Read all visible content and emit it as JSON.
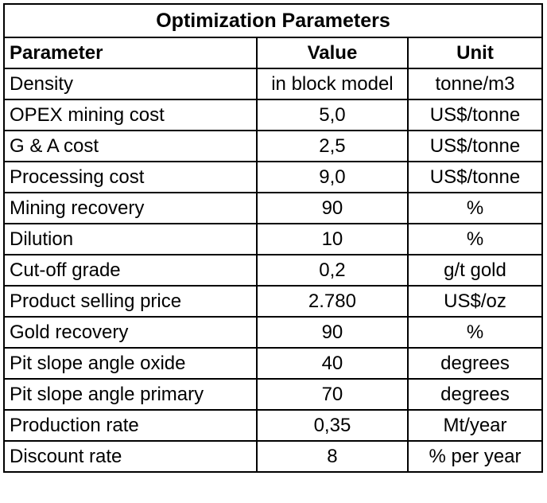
{
  "table": {
    "title": "Optimization Parameters",
    "headers": {
      "parameter": "Parameter",
      "value": "Value",
      "unit": "Unit"
    },
    "rows": [
      {
        "parameter": "Density",
        "value": "in block model",
        "unit": "tonne/m3"
      },
      {
        "parameter": "OPEX mining cost",
        "value": "5,0",
        "unit": "US$/tonne"
      },
      {
        "parameter": "G & A cost",
        "value": "2,5",
        "unit": "US$/tonne"
      },
      {
        "parameter": "Processing cost",
        "value": "9,0",
        "unit": "US$/tonne"
      },
      {
        "parameter": "Mining recovery",
        "value": "90",
        "unit": "%"
      },
      {
        "parameter": "Dilution",
        "value": "10",
        "unit": "%"
      },
      {
        "parameter": "Cut-off grade",
        "value": "0,2",
        "unit": "g/t gold"
      },
      {
        "parameter": "Product selling price",
        "value": "2.780",
        "unit": "US$/oz"
      },
      {
        "parameter": "Gold recovery",
        "value": "90",
        "unit": "%"
      },
      {
        "parameter": "Pit slope angle oxide",
        "value": "40",
        "unit": "degrees"
      },
      {
        "parameter": "Pit slope angle primary",
        "value": "70",
        "unit": "degrees"
      },
      {
        "parameter": "Production rate",
        "value": "0,35",
        "unit": "Mt/year"
      },
      {
        "parameter": "Discount rate",
        "value": "8",
        "unit": "% per year"
      }
    ]
  }
}
